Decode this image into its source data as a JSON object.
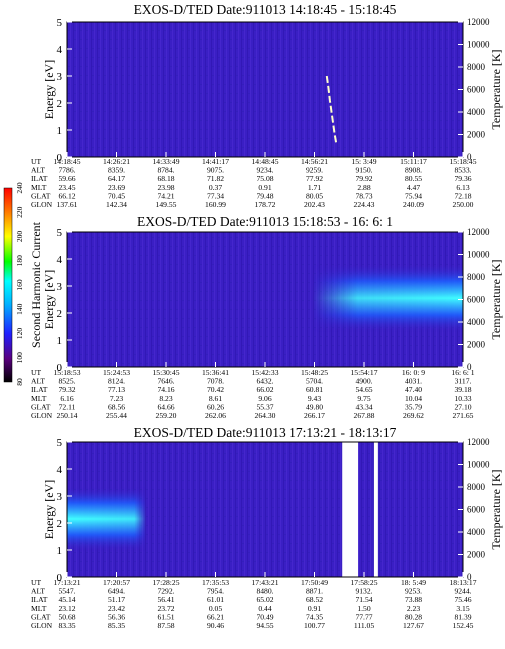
{
  "chart_data": [
    {
      "type": "heatmap",
      "title": "EXOS-D/TED   Date:911013  14:18:45 - 15:18:45",
      "ylabel": "Energy [eV]",
      "y2label": "Temperature [K]",
      "yticks": [
        "0",
        "1",
        "2",
        "3",
        "4",
        "5"
      ],
      "y2ticks": [
        "0",
        "2000",
        "4000",
        "6000",
        "8000",
        "10000",
        "12000"
      ],
      "ylim": [
        0,
        5
      ],
      "y2lim": [
        0,
        12000
      ],
      "ephemeris": {
        "labels": [
          "UT",
          "ALT",
          "ILAT",
          "MLT",
          "GLAT",
          "GLON"
        ],
        "columns": [
          [
            "14:18:45",
            "7786.",
            "59.66",
            "23.45",
            "66.12",
            "137.61"
          ],
          [
            "14:26:21",
            "8359.",
            "64.17",
            "23.69",
            "70.45",
            "142.34"
          ],
          [
            "14:33:49",
            "8784.",
            "68.18",
            "23.98",
            "74.21",
            "149.55"
          ],
          [
            "14:41:17",
            "9075.",
            "71.82",
            "0.37",
            "77.34",
            "160.99"
          ],
          [
            "14:48:45",
            "9234.",
            "75.08",
            "0.91",
            "79.48",
            "178.72"
          ],
          [
            "14:56:21",
            "9259.",
            "77.92",
            "1.71",
            "80.05",
            "202.43"
          ],
          [
            "15: 3:49",
            "9150.",
            "79.92",
            "2.88",
            "78.73",
            "224.43"
          ],
          [
            "15:11:17",
            "8908.",
            "80.55",
            "4.47",
            "75.94",
            "240.09"
          ],
          [
            "15:18:45",
            "8533.",
            "79.36",
            "6.13",
            "72.18",
            "250.00"
          ]
        ]
      },
      "features": [
        {
          "kind": "temperature-trace",
          "x": [
            0.656,
            0.66,
            0.664,
            0.668,
            0.672,
            0.676,
            0.68
          ],
          "y": [
            7200,
            6200,
            5000,
            4000,
            3000,
            2000,
            1200
          ],
          "color": "#ffffcc"
        }
      ]
    },
    {
      "type": "heatmap",
      "title": "EXOS-D/TED   Date:911013  15:18:53 - 16: 6: 1",
      "ylabel": "Energy [eV]",
      "y2label": "Temperature [K]",
      "yticks": [
        "0",
        "1",
        "2",
        "3",
        "4",
        "5"
      ],
      "y2ticks": [
        "0",
        "2000",
        "4000",
        "6000",
        "8000",
        "10000",
        "12000"
      ],
      "ylim": [
        0,
        5
      ],
      "y2lim": [
        0,
        12000
      ],
      "ephemeris": {
        "labels": [
          "UT",
          "ALT",
          "ILAT",
          "MLT",
          "GLAT",
          "GLON"
        ],
        "columns": [
          [
            "15:18:53",
            "8525.",
            "79.32",
            "6.16",
            "72.11",
            "250.14"
          ],
          [
            "15:24:53",
            "8124.",
            "77.13",
            "7.23",
            "68.56",
            "255.44"
          ],
          [
            "15:30:45",
            "7646.",
            "74.16",
            "8.23",
            "64.66",
            "259.20"
          ],
          [
            "15:36:41",
            "7078.",
            "70.42",
            "8.61",
            "60.26",
            "262.06"
          ],
          [
            "15:42:33",
            "6432.",
            "66.02",
            "9.06",
            "55.37",
            "264.30"
          ],
          [
            "15:48:25",
            "5704.",
            "60.81",
            "9.43",
            "49.80",
            "266.17"
          ],
          [
            "15:54:17",
            "4900.",
            "54.65",
            "9.75",
            "43.34",
            "267.88"
          ],
          [
            "16: 0: 9",
            "4031.",
            "47.40",
            "10.04",
            "35.79",
            "269.62"
          ],
          [
            "16: 6: 1",
            "3117.",
            "39.18",
            "10.33",
            "27.10",
            "271.65"
          ]
        ]
      },
      "features": [
        {
          "kind": "flux-band",
          "x_range": [
            0.62,
            1.0
          ],
          "energy_center": 2.55,
          "energy_halfwidth": 0.9,
          "peak_color": "#40ffff"
        }
      ]
    },
    {
      "type": "heatmap",
      "title": "EXOS-D/TED   Date:911013  17:13:21 - 18:13:17",
      "ylabel": "Energy [eV]",
      "y2label": "Temperature [K]",
      "yticks": [
        "0",
        "1",
        "2",
        "3",
        "4",
        "5"
      ],
      "y2ticks": [
        "0",
        "2000",
        "4000",
        "6000",
        "8000",
        "10000",
        "12000"
      ],
      "ylim": [
        0,
        5
      ],
      "y2lim": [
        0,
        12000
      ],
      "ephemeris": {
        "labels": [
          "UT",
          "ALT",
          "ILAT",
          "MLT",
          "GLAT",
          "GLON"
        ],
        "columns": [
          [
            "17:13:21",
            "5547.",
            "45.14",
            "23.12",
            "50.68",
            "83.35"
          ],
          [
            "17:20:57",
            "6494.",
            "51.17",
            "23.42",
            "56.36",
            "85.35"
          ],
          [
            "17:28:25",
            "7292.",
            "56.41",
            "23.72",
            "61.51",
            "87.58"
          ],
          [
            "17:35:53",
            "7954.",
            "61.01",
            "0.05",
            "66.21",
            "90.46"
          ],
          [
            "17:43:21",
            "8480.",
            "65.02",
            "0.44",
            "70.49",
            "94.55"
          ],
          [
            "17:50:49",
            "8871.",
            "68.52",
            "0.91",
            "74.35",
            "100.77"
          ],
          [
            "17:58:25",
            "9132.",
            "71.54",
            "1.50",
            "77.77",
            "111.05"
          ],
          [
            "18: 5:49",
            "9253.",
            "73.88",
            "2.23",
            "80.28",
            "127.67"
          ],
          [
            "18:13:17",
            "9244.",
            "75.46",
            "3.15",
            "81.39",
            "152.45"
          ]
        ]
      },
      "features": [
        {
          "kind": "flux-band",
          "x_range": [
            0.0,
            0.2
          ],
          "energy_center": 2.15,
          "energy_halfwidth": 0.85,
          "peak_color": "#40ffff"
        },
        {
          "kind": "data-gap",
          "x_range": [
            0.695,
            0.735
          ],
          "color": "#ffffff"
        },
        {
          "kind": "data-gap",
          "x_range": [
            0.775,
            0.785
          ],
          "color": "#ffffff"
        }
      ]
    }
  ],
  "colorbar": {
    "label": "Second Harmonic Current",
    "ticks": [
      "80",
      "100",
      "120",
      "140",
      "160",
      "180",
      "200",
      "220",
      "240"
    ],
    "range": [
      80,
      240
    ],
    "colors": [
      "#000000",
      "#5a0080",
      "#2020ff",
      "#00b0ff",
      "#00ffff",
      "#00ff00",
      "#ffff00",
      "#ff8000",
      "#ff0000"
    ]
  }
}
